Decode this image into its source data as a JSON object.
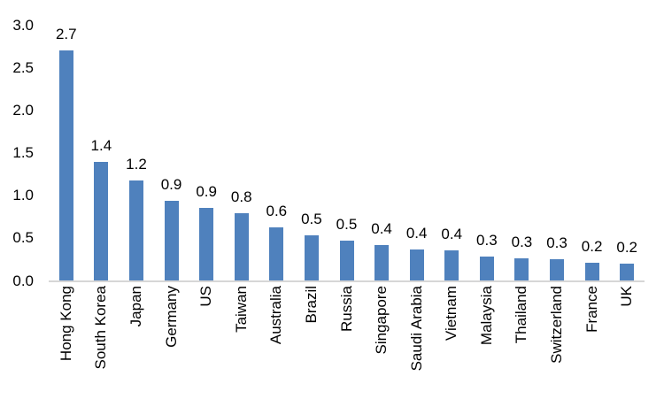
{
  "chart_data": {
    "type": "bar",
    "title": "",
    "xlabel": "",
    "ylabel": "",
    "categories": [
      "Hong Kong",
      "South Korea",
      "Japan",
      "Germany",
      "US",
      "Taiwan",
      "Australia",
      "Brazil",
      "Russia",
      "Singapore",
      "Saudi Arabia",
      "Vietnam",
      "Malaysia",
      "Thailand",
      "Switzerland",
      "France",
      "UK"
    ],
    "values": [
      2.7,
      1.4,
      1.2,
      0.9,
      0.9,
      0.8,
      0.6,
      0.5,
      0.5,
      0.4,
      0.4,
      0.4,
      0.3,
      0.3,
      0.3,
      0.2,
      0.2
    ],
    "values_precise": [
      2.7,
      1.4,
      1.18,
      0.94,
      0.86,
      0.79,
      0.63,
      0.53,
      0.47,
      0.42,
      0.37,
      0.36,
      0.29,
      0.26,
      0.25,
      0.21,
      0.2
    ],
    "data_labels": [
      "2.7",
      "1.4",
      "1.2",
      "0.9",
      "0.9",
      "0.8",
      "0.6",
      "0.5",
      "0.5",
      "0.4",
      "0.4",
      "0.4",
      "0.3",
      "0.3",
      "0.3",
      "0.2",
      "0.2"
    ],
    "ylim": [
      0.0,
      3.0
    ],
    "ytick_labels": [
      "3.0",
      "2.5",
      "2.0",
      "1.5",
      "1.0",
      "0.5",
      "0.0"
    ],
    "ytick_values": [
      3.0,
      2.5,
      2.0,
      1.5,
      1.0,
      0.5,
      0.0
    ],
    "grid": false,
    "legend": false,
    "data_labels_shown": true,
    "bar_color": "#4F81BD",
    "axis_line_color": "#D6D6D6",
    "text_color": "#000000"
  }
}
